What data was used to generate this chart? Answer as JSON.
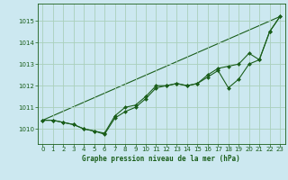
{
  "title": "Graphe pression niveau de la mer (hPa)",
  "bg_color": "#cce8f0",
  "grid_color": "#aacfbb",
  "line_color": "#1a5e1a",
  "marker_color": "#1a5e1a",
  "xlim": [
    -0.5,
    23.5
  ],
  "ylim": [
    1009.3,
    1015.8
  ],
  "yticks": [
    1010,
    1011,
    1012,
    1013,
    1014,
    1015
  ],
  "xticks": [
    0,
    1,
    2,
    3,
    4,
    5,
    6,
    7,
    8,
    9,
    10,
    11,
    12,
    13,
    14,
    15,
    16,
    17,
    18,
    19,
    20,
    21,
    22,
    23
  ],
  "series1": [
    1010.4,
    1010.4,
    1010.3,
    1010.2,
    1010.0,
    1009.9,
    1009.8,
    1010.6,
    1011.0,
    1011.1,
    1011.5,
    1012.0,
    1012.0,
    1012.1,
    1012.0,
    1012.1,
    1012.5,
    1012.8,
    1012.9,
    1013.0,
    1013.5,
    1013.2,
    1014.5,
    1015.2
  ],
  "series2": [
    1010.4,
    1010.4,
    1010.3,
    1010.2,
    1010.0,
    1009.9,
    1009.75,
    1010.5,
    1010.8,
    1011.0,
    1011.4,
    1011.9,
    1012.0,
    1012.1,
    1012.0,
    1012.1,
    1012.4,
    1012.7,
    1011.9,
    1012.3,
    1013.0,
    1013.2,
    1014.5,
    1015.2
  ],
  "series3_x": [
    0,
    23
  ],
  "series3_y": [
    1010.4,
    1015.2
  ],
  "xlabel_fontsize": 5.5,
  "tick_fontsize": 5.0
}
